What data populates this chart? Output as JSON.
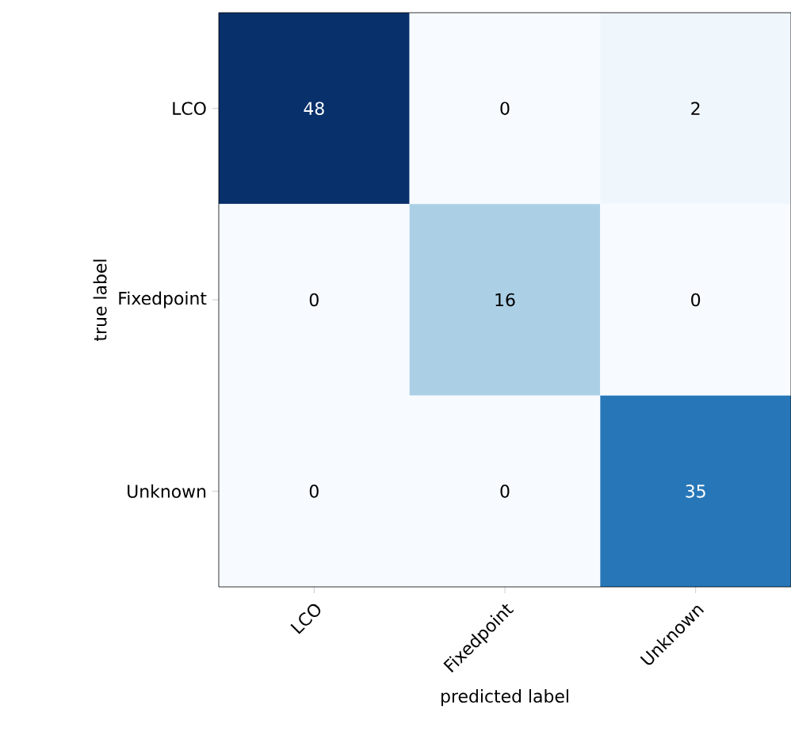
{
  "chart_data": {
    "type": "heatmap",
    "xlabel": "predicted label",
    "ylabel": "true label",
    "categories": [
      "LCO",
      "Fixedpoint",
      "Unknown"
    ],
    "y_categories": [
      "LCO",
      "Fixedpoint",
      "Unknown"
    ],
    "cells": [
      [
        48,
        0,
        2
      ],
      [
        0,
        16,
        0
      ],
      [
        0,
        0,
        35
      ]
    ],
    "data_labels": true
  }
}
